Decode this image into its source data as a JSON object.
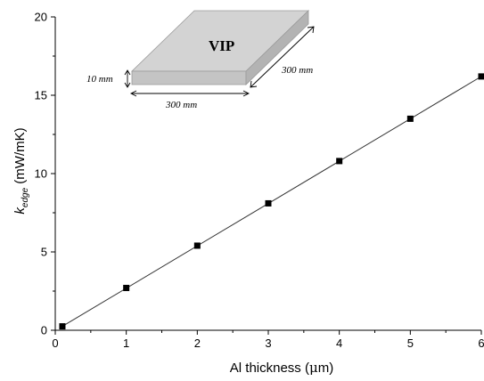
{
  "chart_data": {
    "type": "scatter",
    "x": [
      0.1,
      1,
      2,
      3,
      4,
      5,
      6
    ],
    "y": [
      0.25,
      2.7,
      5.4,
      8.1,
      10.8,
      13.5,
      16.2
    ],
    "fit_line": {
      "x": [
        0.1,
        6
      ],
      "y": [
        0.25,
        16.2
      ]
    },
    "xlabel": {
      "prefix": "Al thickness (",
      "mu": "μ",
      "suffix": "m)"
    },
    "ylabel": {
      "k": "k",
      "sub": "edge",
      "rest": " (mW/mK)"
    },
    "xlim": [
      0,
      6
    ],
    "ylim": [
      0,
      20
    ],
    "xticks": [
      "0",
      "1",
      "2",
      "3",
      "4",
      "5",
      "6"
    ],
    "yticks": [
      "0",
      "5",
      "10",
      "15",
      "20"
    ],
    "grid": false,
    "marker": "square",
    "marker_color": "#000000",
    "line_color": "#333333"
  },
  "inset": {
    "panel_label": "VIP",
    "thickness": "10 mm",
    "width": "300 mm",
    "depth": "300 mm",
    "top_face_color": "#d3d3d3",
    "front_face_color": "#c4c4c4",
    "side_face_color": "#b3b3b3"
  }
}
